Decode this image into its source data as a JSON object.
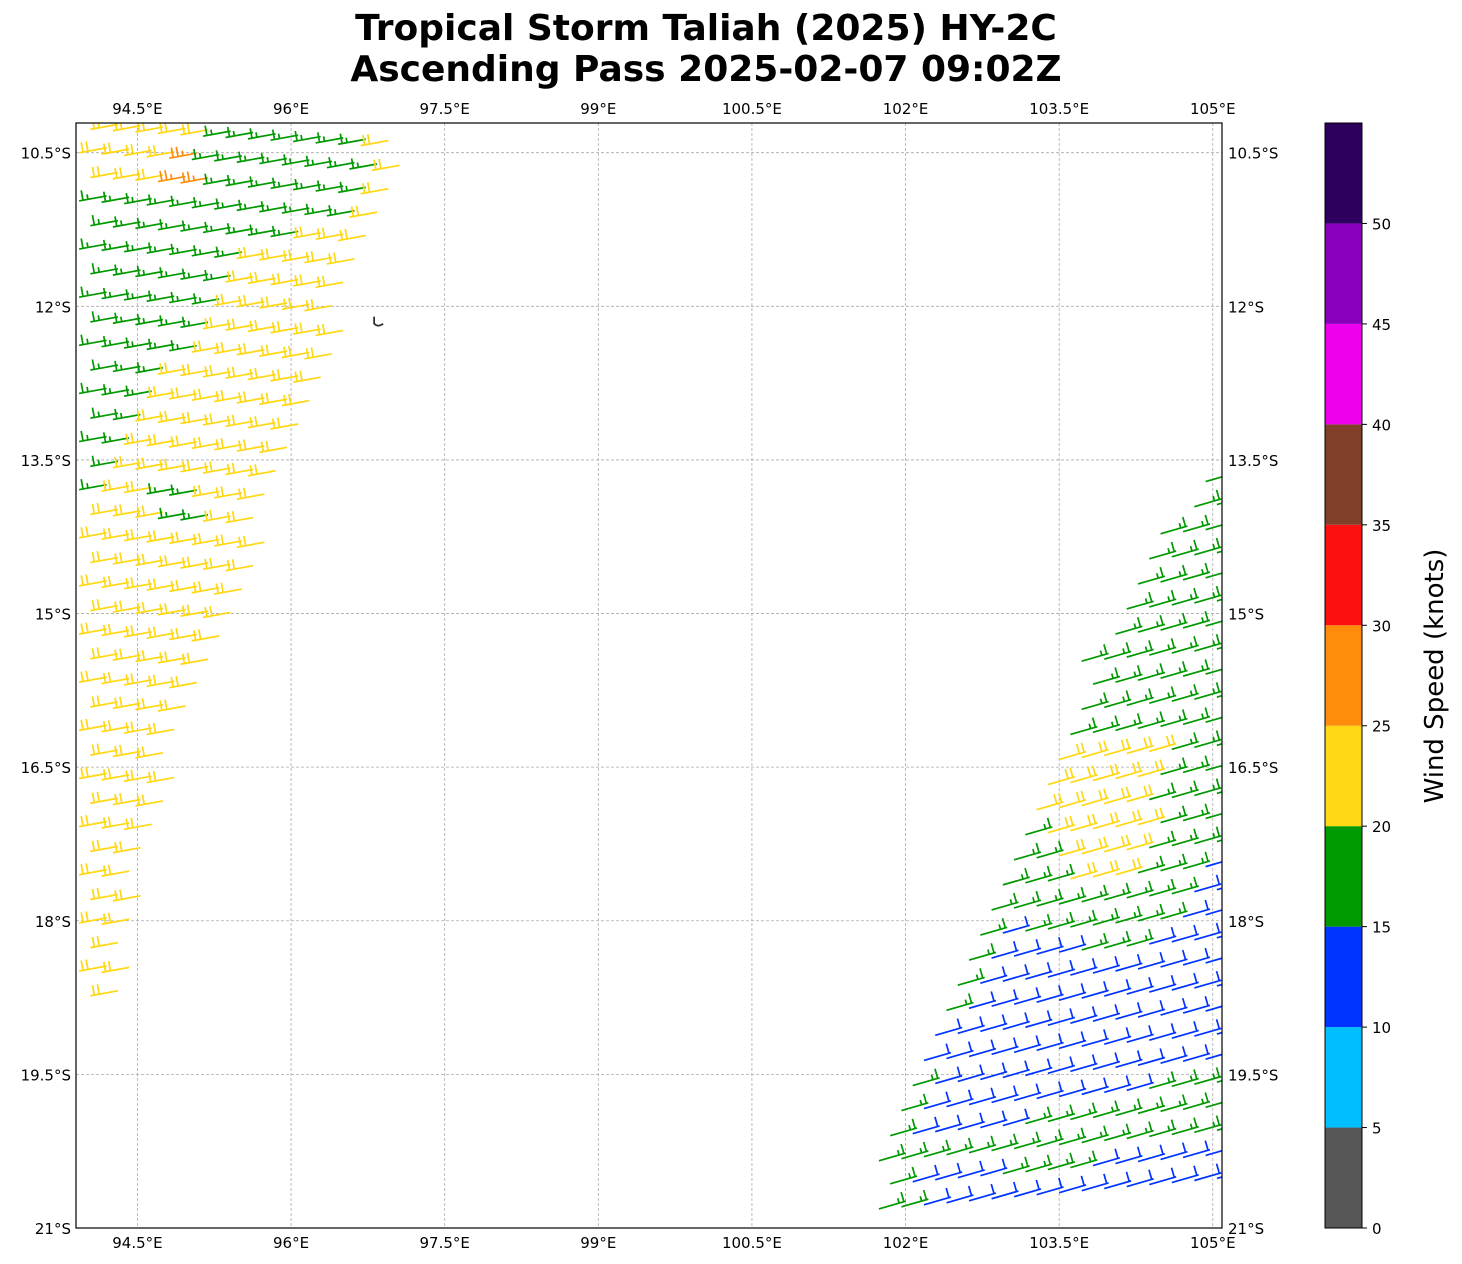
{
  "title": {
    "line1": "Tropical Storm Taliah (2025) HY-2C",
    "line2": "Ascending Pass 2025-02-07 09:02Z"
  },
  "map": {
    "lon_range": [
      93.9,
      105.09
    ],
    "lat_range": [
      -21.0,
      -10.21
    ],
    "grid": true,
    "lon_ticks": [
      94.5,
      96,
      97.5,
      99,
      100.5,
      102,
      103.5,
      105
    ],
    "lon_tick_labels": [
      "94.5°E",
      "96°E",
      "97.5°E",
      "99°E",
      "100.5°E",
      "102°E",
      "103.5°E",
      "105°E"
    ],
    "lat_ticks": [
      -10.5,
      -12,
      -13.5,
      -15,
      -16.5,
      -18,
      -19.5,
      -21
    ],
    "lat_tick_labels": [
      "10.5°S",
      "12°S",
      "13.5°S",
      "15°S",
      "16.5°S",
      "18°S",
      "19.5°S",
      "21°S"
    ],
    "island": {
      "name_icon": "island-outline-icon",
      "lon": 96.85,
      "lat": -12.15
    },
    "swaths": [
      {
        "id": "west",
        "default_speed": 22,
        "barb_side": "down",
        "polygon": [
          [
            93.9,
            -10.21
          ],
          [
            96.95,
            -10.21
          ],
          [
            96.6,
            -11.3
          ],
          [
            96.2,
            -12.5
          ],
          [
            95.8,
            -13.6
          ],
          [
            95.2,
            -15.0
          ],
          [
            94.8,
            -16.0
          ],
          [
            94.45,
            -17.2
          ],
          [
            94.25,
            -18.0
          ],
          [
            94.15,
            -18.9
          ],
          [
            93.95,
            -18.9
          ],
          [
            93.9,
            -18.0
          ]
        ],
        "zones": [
          {
            "speed": 17,
            "polygon": [
              [
                95.0,
                -10.21
              ],
              [
                96.7,
                -10.21
              ],
              [
                96.5,
                -11.35
              ],
              [
                95.4,
                -11.3
              ],
              [
                95.0,
                -11.0
              ]
            ]
          },
          {
            "speed": 17,
            "polygon": [
              [
                93.9,
                -10.9
              ],
              [
                95.6,
                -10.95
              ],
              [
                95.4,
                -11.7
              ],
              [
                94.7,
                -12.6
              ],
              [
                94.2,
                -13.7
              ],
              [
                93.9,
                -14.1
              ]
            ]
          },
          {
            "speed": 17,
            "polygon": [
              [
                94.55,
                -13.8
              ],
              [
                95.0,
                -13.8
              ],
              [
                94.9,
                -14.2
              ],
              [
                94.5,
                -14.2
              ]
            ]
          },
          {
            "speed": 27,
            "polygon": [
              [
                94.6,
                -10.55
              ],
              [
                95.0,
                -10.55
              ],
              [
                94.95,
                -10.85
              ],
              [
                94.55,
                -10.85
              ]
            ]
          }
        ]
      },
      {
        "id": "east",
        "default_speed": 17,
        "barb_side": "up",
        "polygon": [
          [
            105.0,
            -13.6
          ],
          [
            105.09,
            -13.6
          ],
          [
            105.09,
            -21.0
          ],
          [
            101.6,
            -21.0
          ],
          [
            101.8,
            -20.0
          ],
          [
            102.1,
            -19.2
          ],
          [
            102.5,
            -18.3
          ],
          [
            102.9,
            -17.5
          ],
          [
            103.3,
            -16.5
          ],
          [
            103.7,
            -15.5
          ],
          [
            104.2,
            -14.5
          ]
        ],
        "zones": [
          {
            "speed": 22,
            "polygon": [
              [
                103.2,
                -16.4
              ],
              [
                104.6,
                -16.1
              ],
              [
                104.1,
                -17.6
              ],
              [
                103.3,
                -17.6
              ]
            ]
          },
          {
            "speed": 12,
            "polygon": [
              [
                102.9,
                -18.1
              ],
              [
                104.2,
                -18.4
              ],
              [
                105.09,
                -17.2
              ],
              [
                105.09,
                -19.3
              ],
              [
                104.0,
                -19.8
              ],
              [
                102.6,
                -20.1
              ],
              [
                101.9,
                -20.3
              ],
              [
                102.2,
                -19.2
              ]
            ]
          },
          {
            "speed": 12,
            "polygon": [
              [
                101.9,
                -20.35
              ],
              [
                103.2,
                -20.5
              ],
              [
                105.09,
                -20.15
              ],
              [
                105.09,
                -21.0
              ],
              [
                102.3,
                -21.0
              ]
            ]
          }
        ]
      }
    ]
  },
  "colorbar": {
    "label": "Wind Speed (knots)",
    "bounds": [
      0,
      5,
      10,
      15,
      20,
      25,
      30,
      35,
      40,
      45,
      50,
      55
    ],
    "tick_values": [
      0,
      5,
      10,
      15,
      20,
      25,
      30,
      35,
      40,
      45,
      50
    ],
    "tick_labels": [
      "0",
      "5",
      "10",
      "15",
      "20",
      "25",
      "30",
      "35",
      "40",
      "45",
      "50"
    ],
    "colors": [
      "#575757",
      "#00bfff",
      "#0033ff",
      "#009900",
      "#ffd712",
      "#ff8c0a",
      "#ff1010",
      "#7f3f28",
      "#ee00ee",
      "#8800bb",
      "#2e005e"
    ]
  }
}
